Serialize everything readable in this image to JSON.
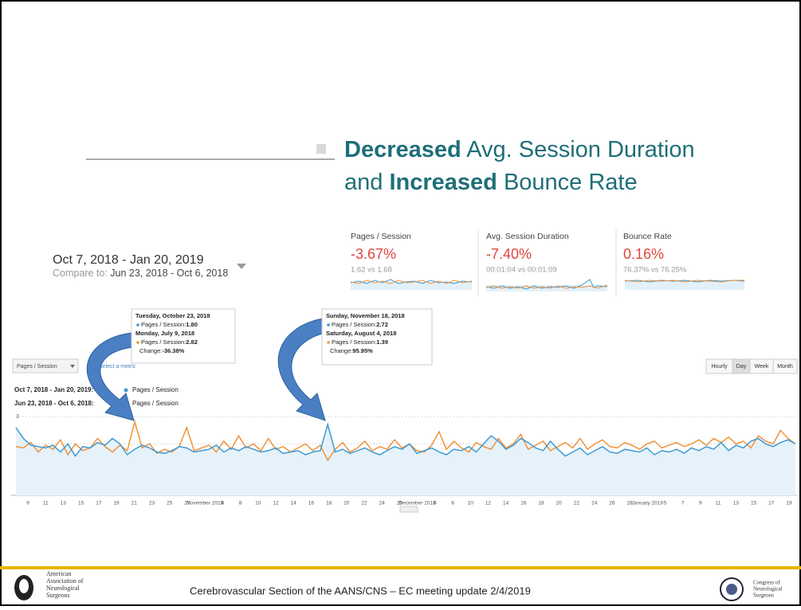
{
  "title": {
    "line1_bold": "Decreased",
    "line1_rest": "Avg. Session Duration",
    "line2_pre": "and",
    "line2_bold": "Increased",
    "line2_rest": "Bounce Rate"
  },
  "date_range": {
    "main": "Oct 7, 2018 - Jan 20, 2019",
    "compare_label": "Compare to:",
    "compare": "Jun 23, 2018 - Oct 6, 2018"
  },
  "metrics": [
    {
      "name": "Pages / Session",
      "change": "-3.67%",
      "detail": "1.62 vs 1.68"
    },
    {
      "name": "Avg. Session Duration",
      "change": "-7.40%",
      "detail": "00:01:04 vs 00:01:09"
    },
    {
      "name": "Bounce Rate",
      "change": "0.16%",
      "detail": "76.37% vs 76.25%"
    }
  ],
  "controls": {
    "metric_select": "Pages / Session",
    "select_metric": "Select a metric",
    "periods": [
      "Hourly",
      "Day",
      "Week",
      "Month"
    ]
  },
  "tooltips": [
    {
      "lines": [
        "Tuesday, October 23, 2018",
        "Pages / Session:",
        "1.80",
        "Monday, July 9, 2018",
        "Pages / Session:",
        "2.82",
        "Change:",
        "-36.38%"
      ]
    },
    {
      "lines": [
        "Sunday, November 18, 2018",
        "Pages / Session:",
        "2.72",
        "Saturday, August 4, 2018",
        "Pages / Session:",
        "1.39",
        "Change:",
        "95.95%"
      ]
    }
  ],
  "chart_data": {
    "type": "line",
    "series": [
      {
        "name": "Pages / Session",
        "range": "Oct 7, 2018 - Jan 20, 2019:",
        "color": "#3c9ad3",
        "values": [
          2.6,
          2.2,
          1.95,
          1.9,
          1.85,
          1.95,
          1.7,
          2.0,
          1.55,
          1.9,
          1.85,
          2.05,
          1.95,
          2.2,
          2.0,
          1.6,
          1.8,
          1.95,
          1.85,
          1.7,
          1.65,
          1.75,
          1.9,
          1.85,
          1.7,
          1.75,
          1.8,
          1.95,
          1.7,
          1.85,
          1.75,
          1.9,
          1.8,
          1.7,
          1.75,
          1.85,
          1.65,
          1.7,
          1.75,
          1.6,
          1.7,
          1.75,
          2.72,
          1.7,
          1.8,
          1.65,
          1.75,
          1.85,
          1.7,
          1.6,
          1.75,
          1.9,
          1.8,
          2.0,
          1.65,
          1.75,
          1.85,
          1.7,
          1.6,
          1.8,
          1.75,
          1.9,
          1.7,
          2.0,
          2.3,
          2.1,
          1.8,
          1.95,
          2.2,
          2.05,
          1.85,
          1.75,
          2.1,
          1.8,
          1.55,
          1.7,
          1.85,
          1.6,
          1.75,
          1.9,
          1.7,
          1.65,
          1.8,
          1.75,
          1.7,
          1.85,
          1.6,
          1.75,
          1.7,
          1.8,
          1.65,
          1.85,
          1.75,
          1.9,
          1.8,
          2.05,
          1.75,
          1.95,
          1.85,
          2.1,
          2.2,
          2.0,
          1.9,
          2.05,
          2.15,
          2.0
        ]
      },
      {
        "name": "Pages / Session",
        "range": "Jun 23, 2018 - Oct 6, 2018:",
        "color": "#f0933a",
        "values": [
          1.9,
          1.85,
          2.05,
          1.7,
          1.95,
          1.8,
          2.15,
          1.6,
          2.0,
          1.75,
          1.85,
          2.2,
          1.9,
          1.7,
          1.95,
          1.75,
          2.82,
          1.85,
          2.0,
          1.65,
          1.8,
          1.7,
          1.9,
          2.6,
          1.75,
          1.85,
          1.95,
          1.7,
          2.1,
          1.8,
          2.3,
          1.85,
          2.0,
          1.75,
          2.2,
          1.8,
          1.9,
          1.7,
          1.85,
          2.0,
          1.75,
          1.95,
          1.39,
          1.8,
          2.05,
          1.7,
          1.85,
          2.1,
          1.75,
          1.9,
          1.8,
          2.15,
          1.85,
          2.0,
          1.75,
          1.7,
          1.95,
          2.45,
          1.8,
          2.1,
          1.85,
          1.7,
          2.05,
          1.9,
          1.8,
          2.2,
          1.85,
          2.0,
          2.35,
          1.8,
          1.95,
          2.1,
          1.75,
          1.9,
          2.05,
          1.85,
          2.2,
          1.8,
          2.0,
          2.15,
          1.9,
          1.85,
          2.05,
          1.95,
          1.8,
          2.0,
          2.1,
          1.85,
          1.95,
          2.05,
          1.9,
          2.0,
          2.15,
          1.95,
          2.2,
          2.05,
          2.25,
          2.0,
          2.1,
          1.85,
          2.3,
          2.1,
          2.0,
          2.5,
          2.2,
          2.0
        ]
      }
    ],
    "ylim": [
      0.1,
      3.1
    ],
    "yticks": [
      1,
      2,
      3
    ],
    "grid": true,
    "x_labels": [
      "9",
      "11",
      "13",
      "15",
      "17",
      "19",
      "21",
      "23",
      "25",
      "27",
      "November 2018",
      "6",
      "8",
      "10",
      "12",
      "14",
      "16",
      "18",
      "20",
      "22",
      "24",
      "26",
      "December 2018",
      "6",
      "8",
      "10",
      "12",
      "14",
      "16",
      "18",
      "20",
      "22",
      "24",
      "26",
      "28",
      "January 2019",
      "5",
      "7",
      "9",
      "11",
      "13",
      "15",
      "17",
      "19"
    ]
  },
  "footer": {
    "org_left": [
      "American",
      "Association of",
      "Neurological",
      "Surgeons"
    ],
    "caption": "Cerebrovascular Section of the AANS/CNS – EC meeting update 2/4/2019",
    "org_right": [
      "Congress of",
      "Neurological",
      "Surgeons"
    ]
  }
}
